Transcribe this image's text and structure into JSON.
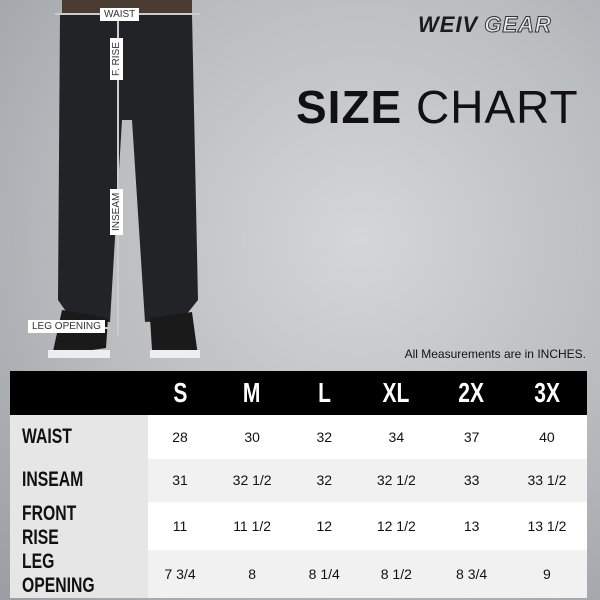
{
  "brand": {
    "name_part1": "WEIV",
    "name_part2": "GEAR"
  },
  "title": {
    "bold": "SIZE",
    "regular": "CHART"
  },
  "note": "All Measurements are in INCHES.",
  "diagram_labels": {
    "waist": "WAIST",
    "front_rise": "F. RISE",
    "inseam": "INSEAM",
    "leg_opening": "LEG OPENING"
  },
  "table": {
    "columns": [
      "S",
      "M",
      "L",
      "XL",
      "2X",
      "3X"
    ],
    "rows": [
      {
        "label": "WAIST",
        "values": [
          "28",
          "30",
          "32",
          "34",
          "37",
          "40"
        ]
      },
      {
        "label": "INSEAM",
        "values": [
          "31",
          "32 1/2",
          "32",
          "32 1/2",
          "33",
          "33 1/2"
        ]
      },
      {
        "label": "FRONT RISE",
        "values": [
          "11",
          "11 1/2",
          "12",
          "12 1/2",
          "13",
          "13 1/2"
        ]
      },
      {
        "label": "LEG OPENING",
        "values": [
          "7 3/4",
          "8",
          "8 1/4",
          "8 1/2",
          "8 3/4",
          "9"
        ]
      }
    ]
  }
}
